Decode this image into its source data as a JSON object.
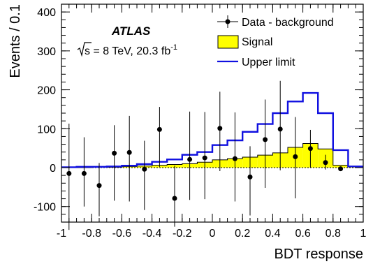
{
  "chart_data": {
    "type": "histogram",
    "xlabel": "BDT response",
    "ylabel": "Events / 0.1",
    "xlim": [
      -1,
      1
    ],
    "ylim": [
      -140,
      420
    ],
    "x_ticks": [
      -1,
      -0.8,
      -0.6,
      -0.4,
      -0.2,
      0,
      0.2,
      0.4,
      0.6,
      0.8,
      1
    ],
    "x_tick_labels": [
      "-1",
      "-0.8",
      "-0.6",
      "-0.4",
      "-0.2",
      "0",
      "0.2",
      "0.4",
      "0.6",
      "0.8",
      "1"
    ],
    "y_ticks": [
      -100,
      0,
      100,
      200,
      300,
      400
    ],
    "y_tick_labels": [
      "-100",
      "0",
      "100",
      "200",
      "300",
      "400"
    ],
    "bin_edges": [
      -1.0,
      -0.9,
      -0.8,
      -0.7,
      -0.6,
      -0.5,
      -0.4,
      -0.3,
      -0.2,
      -0.1,
      0.0,
      0.1,
      0.2,
      0.3,
      0.4,
      0.5,
      0.6,
      0.7,
      0.8,
      0.9,
      1.0
    ],
    "series": [
      {
        "name": "Signal",
        "kind": "filled-histogram",
        "values": [
          0,
          0,
          1,
          1,
          3,
          4,
          6,
          8,
          10,
          14,
          20,
          23,
          27,
          32,
          38,
          52,
          62,
          48,
          6,
          2
        ]
      },
      {
        "name": "Upper limit",
        "kind": "step-line",
        "values": [
          1,
          2,
          2,
          3,
          5,
          9,
          15,
          21,
          33,
          40,
          58,
          70,
          92,
          112,
          140,
          170,
          192,
          140,
          45,
          3
        ]
      },
      {
        "name": "Data - background",
        "kind": "points-with-errors",
        "x": [
          -0.95,
          -0.85,
          -0.75,
          -0.65,
          -0.55,
          -0.45,
          -0.35,
          -0.25,
          -0.15,
          -0.05,
          0.05,
          0.15,
          0.25,
          0.35,
          0.45,
          0.55,
          0.65,
          0.75,
          0.85
        ],
        "y": [
          -15,
          -15,
          -46,
          37,
          39,
          -4,
          98,
          -79,
          21,
          25,
          101,
          23,
          -24,
          72,
          99,
          28,
          49,
          13,
          -3
        ],
        "err_up": [
          128,
          93,
          58,
          72,
          94,
          73,
          58,
          84,
          123,
          118,
          94,
          119,
          79,
          103,
          124,
          102,
          48,
          20,
          3
        ],
        "err_down": [
          145,
          85,
          79,
          122,
          126,
          105,
          96,
          73,
          104,
          106,
          110,
          110,
          99,
          124,
          106,
          107,
          49,
          18,
          3
        ]
      }
    ],
    "legend_position": "top-right",
    "legend": [
      {
        "label": "Data - background",
        "marker": "point"
      },
      {
        "label": "Signal",
        "marker": "yellow-box"
      },
      {
        "label": "Upper limit",
        "marker": "blue-line"
      }
    ],
    "annotations": {
      "experiment": "ATLAS",
      "energy_prefix": "s",
      "energy_main": " = 8 TeV, 20.3 fb",
      "energy_sup": "-1"
    },
    "colors": {
      "signal_fill": "#ffff00",
      "upper_limit": "#1010e0",
      "data": "#000000"
    },
    "grid": false
  }
}
